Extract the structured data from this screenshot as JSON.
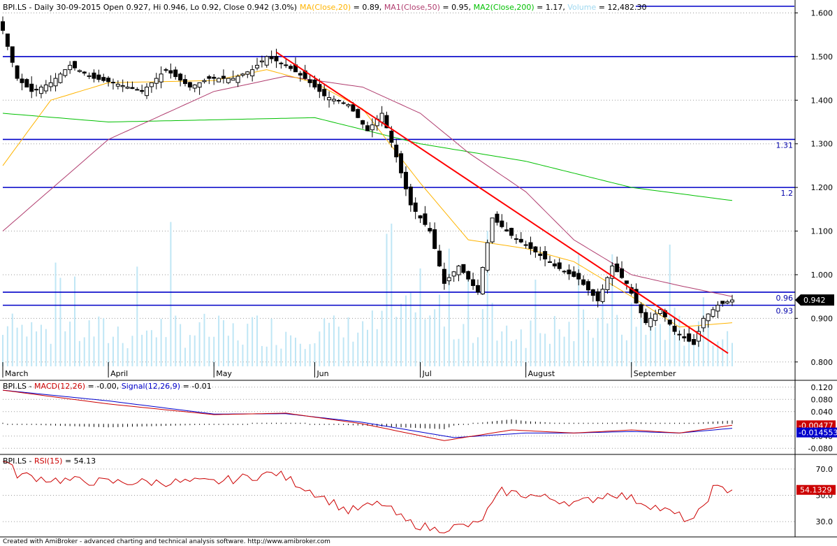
{
  "header": {
    "price": {
      "prefix": "BPI.LS - Daily 30-09-2015 Open 0.927, Hi 0.946, Lo 0.92, Close 0.942 (3.0%)",
      "ma": "MA(Close,20)",
      "ma_val": " = 0.89, ",
      "ma1": "MA1(Close,50)",
      "ma1_val": " = 0.95, ",
      "ma2": "MA2(Close,200)",
      "ma2_val": " = 1.17, ",
      "vol": "Volume",
      "vol_val": " = 12,482.30"
    },
    "macd": {
      "prefix": "BPI.LS - ",
      "macd": "MACD(12,26)",
      "macd_val": " = -0.00, ",
      "signal": "Signal(12,26,9)",
      "signal_val": " = -0.01"
    },
    "rsi": {
      "prefix": "BPI.LS - ",
      "rsi": "RSI(15)",
      "rsi_val": " = 54.13"
    }
  },
  "footer": "Created with AmiBroker - advanced charting and technical analysis software. http://www.amibroker.com",
  "colors": {
    "up_candle": "#ffffff",
    "down_candle": "#000000",
    "ma20": "#ffb400",
    "ma50": "#b03c6e",
    "ma200": "#00c000",
    "volume": "#bfe6f5",
    "levels": "#0000c8",
    "trendline": "#ff0000",
    "macd": "#cc0000",
    "signal": "#0000cc",
    "rsi": "#cc0000"
  },
  "chart_data": [
    {
      "type": "candlestick",
      "title": "BPI.LS - Daily 30-09-2015",
      "ylim": [
        0.79,
        1.62
      ],
      "y_ticks": [
        "1.600",
        "1.500",
        "1.400",
        "1.300",
        "1.200",
        "1.100",
        "1.000",
        "0.900",
        "0.800"
      ],
      "x_labels": [
        "March",
        "April",
        "May",
        "Jun",
        "Jul",
        "August",
        "September"
      ],
      "last_close_tag": "0.942",
      "horizontal_levels": [
        {
          "value": 1.5,
          "label": ""
        },
        {
          "value": 1.31,
          "label": "1.31"
        },
        {
          "value": 1.2,
          "label": "1.2"
        },
        {
          "value": 0.96,
          "label": "0.96"
        },
        {
          "value": 0.93,
          "label": "0.93"
        }
      ],
      "trendline": {
        "from": {
          "date": "2015-05-20",
          "value": 1.51
        },
        "to": {
          "date": "2015-09-30",
          "value": 0.82
        }
      },
      "ohlc_anchors": [
        [
          "2015-03-02",
          1.56
        ],
        [
          "2015-03-05",
          1.45
        ],
        [
          "2015-03-10",
          1.42
        ],
        [
          "2015-03-16",
          1.44
        ],
        [
          "2015-03-20",
          1.48
        ],
        [
          "2015-03-27",
          1.45
        ],
        [
          "2015-04-02",
          1.44
        ],
        [
          "2015-04-10",
          1.42
        ],
        [
          "2015-04-17",
          1.47
        ],
        [
          "2015-04-24",
          1.43
        ],
        [
          "2015-04-30",
          1.45
        ],
        [
          "2015-05-07",
          1.45
        ],
        [
          "2015-05-13",
          1.47
        ],
        [
          "2015-05-18",
          1.5
        ],
        [
          "2015-05-22",
          1.48
        ],
        [
          "2015-05-28",
          1.45
        ],
        [
          "2015-06-03",
          1.41
        ],
        [
          "2015-06-10",
          1.39
        ],
        [
          "2015-06-16",
          1.33
        ],
        [
          "2015-06-19",
          1.37
        ],
        [
          "2015-06-24",
          1.27
        ],
        [
          "2015-06-29",
          1.16
        ],
        [
          "2015-07-03",
          1.1
        ],
        [
          "2015-07-08",
          0.98
        ],
        [
          "2015-07-13",
          1.02
        ],
        [
          "2015-07-17",
          0.96
        ],
        [
          "2015-07-22",
          1.13
        ],
        [
          "2015-07-28",
          1.09
        ],
        [
          "2015-08-03",
          1.06
        ],
        [
          "2015-08-10",
          1.02
        ],
        [
          "2015-08-17",
          0.99
        ],
        [
          "2015-08-21",
          0.94
        ],
        [
          "2015-08-26",
          1.02
        ],
        [
          "2015-08-31",
          0.98
        ],
        [
          "2015-09-04",
          0.89
        ],
        [
          "2015-09-09",
          0.92
        ],
        [
          "2015-09-14",
          0.87
        ],
        [
          "2015-09-18",
          0.84
        ],
        [
          "2015-09-22",
          0.9
        ],
        [
          "2015-09-25",
          0.93
        ],
        [
          "2015-09-30",
          0.942
        ]
      ],
      "ma20_anchors": [
        [
          "2015-03-02",
          1.25
        ],
        [
          "2015-03-16",
          1.4
        ],
        [
          "2015-04-01",
          1.44
        ],
        [
          "2015-05-01",
          1.445
        ],
        [
          "2015-05-18",
          1.47
        ],
        [
          "2015-06-01",
          1.44
        ],
        [
          "2015-06-15",
          1.38
        ],
        [
          "2015-07-01",
          1.21
        ],
        [
          "2015-07-15",
          1.08
        ],
        [
          "2015-08-01",
          1.06
        ],
        [
          "2015-08-15",
          1.03
        ],
        [
          "2015-09-01",
          0.95
        ],
        [
          "2015-09-15",
          0.88
        ],
        [
          "2015-09-30",
          0.89
        ]
      ],
      "ma50_anchors": [
        [
          "2015-03-02",
          1.1
        ],
        [
          "2015-04-01",
          1.31
        ],
        [
          "2015-05-01",
          1.42
        ],
        [
          "2015-05-22",
          1.455
        ],
        [
          "2015-06-15",
          1.43
        ],
        [
          "2015-07-01",
          1.37
        ],
        [
          "2015-07-15",
          1.28
        ],
        [
          "2015-08-01",
          1.19
        ],
        [
          "2015-08-15",
          1.08
        ],
        [
          "2015-09-01",
          1.0
        ],
        [
          "2015-09-15",
          0.975
        ],
        [
          "2015-09-30",
          0.95
        ]
      ],
      "ma200_anchors": [
        [
          "2015-03-02",
          1.37
        ],
        [
          "2015-04-01",
          1.35
        ],
        [
          "2015-05-01",
          1.355
        ],
        [
          "2015-06-01",
          1.36
        ],
        [
          "2015-07-01",
          1.3
        ],
        [
          "2015-08-01",
          1.26
        ],
        [
          "2015-09-01",
          1.2
        ],
        [
          "2015-09-30",
          1.17
        ]
      ],
      "volume_last": 12482.3
    },
    {
      "type": "line",
      "title": "MACD(12,26)",
      "ylim": [
        -0.1,
        0.14
      ],
      "y_ticks": [
        "0.120",
        "0.080",
        "0.040",
        "-0.040",
        "-0.080"
      ],
      "value_tags": [
        "-0.00477",
        "-0.014553"
      ],
      "series": [
        {
          "name": "MACD(12,26)",
          "last": -0.00477,
          "anchors": [
            [
              "2015-03-02",
              0.11
            ],
            [
              "2015-04-01",
              0.065
            ],
            [
              "2015-05-01",
              0.03
            ],
            [
              "2015-05-22",
              0.035
            ],
            [
              "2015-06-15",
              0.0
            ],
            [
              "2015-07-08",
              -0.055
            ],
            [
              "2015-07-28",
              -0.02
            ],
            [
              "2015-08-15",
              -0.03
            ],
            [
              "2015-09-01",
              -0.02
            ],
            [
              "2015-09-15",
              -0.03
            ],
            [
              "2015-09-30",
              -0.00477
            ]
          ]
        },
        {
          "name": "Signal(12,26,9)",
          "last": -0.014553,
          "anchors": [
            [
              "2015-03-02",
              0.11
            ],
            [
              "2015-04-01",
              0.075
            ],
            [
              "2015-05-01",
              0.032
            ],
            [
              "2015-05-22",
              0.033
            ],
            [
              "2015-06-15",
              0.005
            ],
            [
              "2015-07-10",
              -0.045
            ],
            [
              "2015-08-01",
              -0.03
            ],
            [
              "2015-08-15",
              -0.03
            ],
            [
              "2015-09-01",
              -0.025
            ],
            [
              "2015-09-15",
              -0.03
            ],
            [
              "2015-09-30",
              -0.014553
            ]
          ]
        }
      ]
    },
    {
      "type": "line",
      "title": "RSI(15)",
      "ylim": [
        20,
        80
      ],
      "y_ticks": [
        "70.0",
        "50.0",
        "30.0"
      ],
      "value_tag": "54.1329",
      "series": [
        {
          "name": "RSI(15)",
          "last": 54.13,
          "anchors": [
            [
              "2015-03-02",
              78
            ],
            [
              "2015-03-05",
              66
            ],
            [
              "2015-03-16",
              62
            ],
            [
              "2015-04-01",
              60
            ],
            [
              "2015-05-01",
              60
            ],
            [
              "2015-05-20",
              67
            ],
            [
              "2015-06-01",
              52
            ],
            [
              "2015-06-10",
              38
            ],
            [
              "2015-06-20",
              44
            ],
            [
              "2015-06-26",
              30
            ],
            [
              "2015-07-06",
              24
            ],
            [
              "2015-07-17",
              28
            ],
            [
              "2015-07-24",
              53
            ],
            [
              "2015-08-03",
              50
            ],
            [
              "2015-08-17",
              44
            ],
            [
              "2015-08-26",
              52
            ],
            [
              "2015-09-04",
              44
            ],
            [
              "2015-09-18",
              30
            ],
            [
              "2015-09-24",
              55
            ],
            [
              "2015-09-30",
              54.13
            ]
          ]
        }
      ]
    }
  ]
}
